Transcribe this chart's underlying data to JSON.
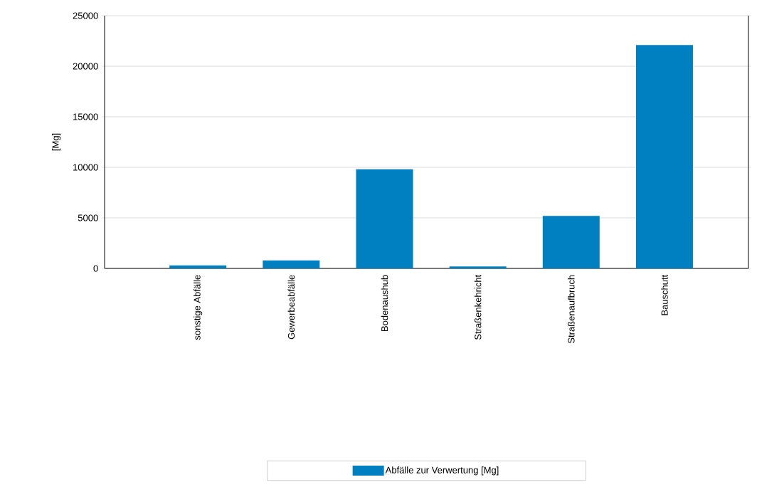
{
  "chart_data": {
    "type": "bar",
    "ylabel": "[Mg]",
    "categories": [
      "sonstige Abfälle",
      "Gewerbeabfälle",
      "Bodenaushub",
      "Straßenkehricht",
      "Straßenaufbruch",
      "Bauschutt"
    ],
    "series": [
      {
        "name": "Abfälle zur Verwertung [Mg]",
        "color": "#0080c0",
        "values": [
          300,
          800,
          9800,
          200,
          5200,
          22100
        ]
      }
    ],
    "ylim": [
      0,
      25000
    ],
    "yticks": [
      0,
      5000,
      10000,
      15000,
      20000,
      25000
    ],
    "grid": "y",
    "legend": "bottom"
  }
}
